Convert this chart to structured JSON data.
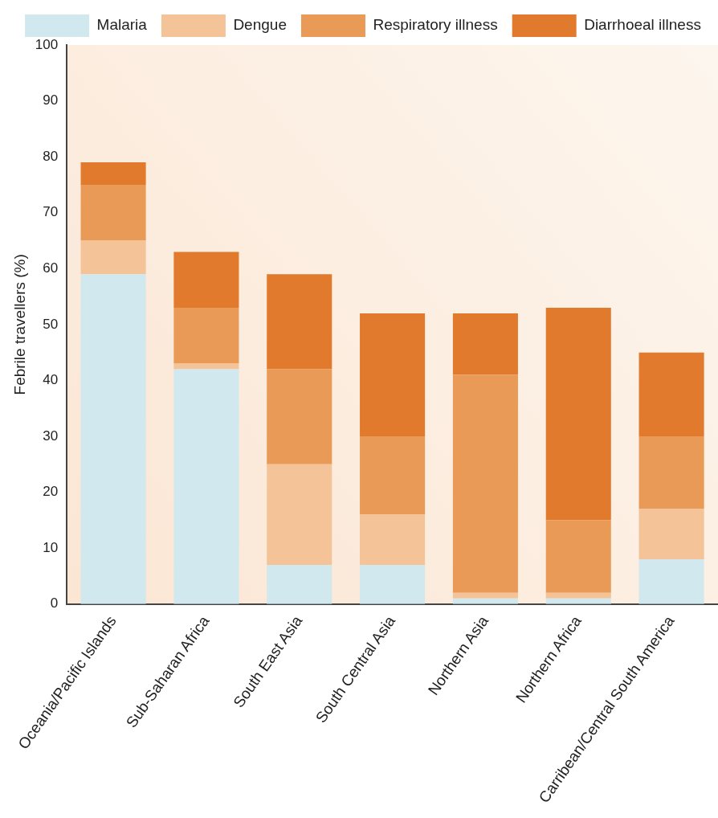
{
  "chart_data": {
    "type": "bar",
    "stacked": true,
    "ylabel": "Febrile travellers (%)",
    "categories": [
      "Oceania/Pacific Islands",
      "Sub-Saharan Africa",
      "South East Asia",
      "South Central Asia",
      "Northern Asia",
      "Northern Africa",
      "Carribean/Central South America"
    ],
    "series": [
      {
        "name": "Malaria",
        "color": "#d1e8ee",
        "values": [
          59,
          42,
          7,
          7,
          1,
          1,
          8
        ]
      },
      {
        "name": "Dengue",
        "color": "#f4c397",
        "values": [
          6,
          1,
          18,
          9,
          1,
          1,
          9
        ]
      },
      {
        "name": "Respiratory illness",
        "color": "#e99a56",
        "values": [
          10,
          10,
          17,
          14,
          39,
          13,
          13
        ]
      },
      {
        "name": "Diarrhoeal illness",
        "color": "#e27a2d",
        "values": [
          4,
          10,
          17,
          22,
          11,
          38,
          15
        ]
      }
    ],
    "ylim": [
      0,
      100
    ],
    "yticks": [
      0,
      10,
      20,
      30,
      40,
      50,
      60,
      70,
      80,
      90,
      100
    ],
    "grid": false,
    "legend": "top"
  }
}
